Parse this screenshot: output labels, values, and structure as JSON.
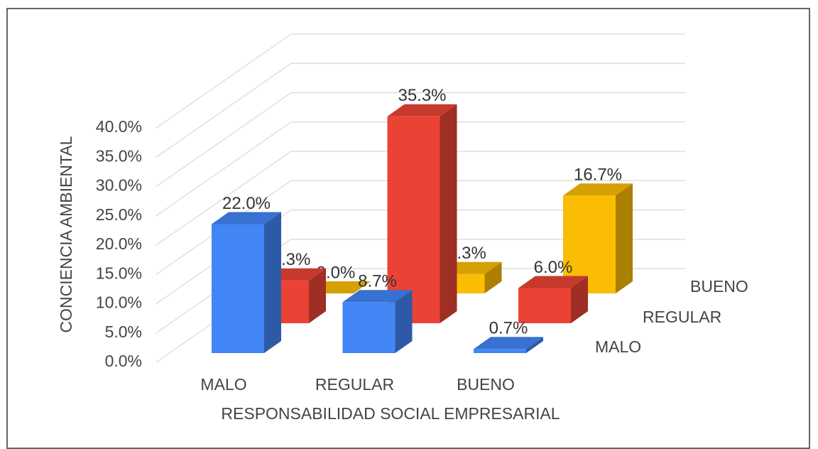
{
  "chart_data": {
    "type": "bar3d",
    "categories": [
      "MALO",
      "REGULAR",
      "BUENO"
    ],
    "series": [
      {
        "name": "MALO",
        "color": "#4285f4",
        "values": [
          22.0,
          8.7,
          0.7
        ],
        "value_labels": [
          "22.0%",
          "8.7%",
          "0.7%"
        ]
      },
      {
        "name": "REGULAR",
        "color": "#ea4335",
        "values": [
          7.3,
          35.3,
          6.0
        ],
        "value_labels": [
          "7.3%",
          "35.3%",
          "6.0%"
        ]
      },
      {
        "name": "BUENO",
        "color": "#fbbc04",
        "values": [
          0.0,
          3.3,
          16.7
        ],
        "value_labels": [
          "0.0%",
          "3.3%",
          "16.7%"
        ]
      }
    ],
    "xlabel": "RESPONSABILIDAD SOCIAL EMPRESARIAL",
    "ylabel": "CONCIENCIA AMBIENTAL",
    "ylim": [
      0,
      40
    ],
    "yticks": [
      {
        "value": 0,
        "label": "0.0%"
      },
      {
        "value": 5,
        "label": "5.0%"
      },
      {
        "value": 10,
        "label": "10.0%"
      },
      {
        "value": 15,
        "label": "15.0%"
      },
      {
        "value": 20,
        "label": "20.0%"
      },
      {
        "value": 25,
        "label": "25.0%"
      },
      {
        "value": 30,
        "label": "30.0%"
      },
      {
        "value": 35,
        "label": "35.0%"
      },
      {
        "value": 40,
        "label": "40.0%"
      }
    ],
    "grid": true
  }
}
